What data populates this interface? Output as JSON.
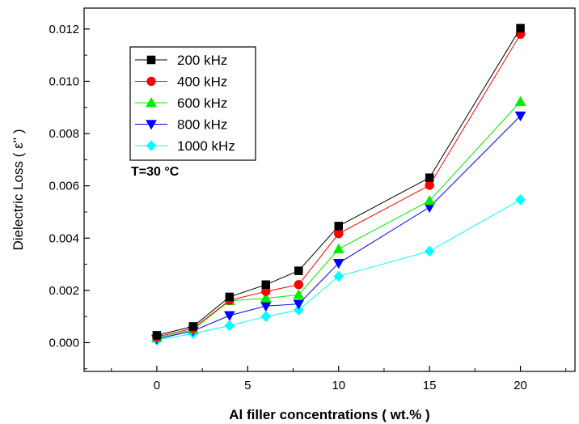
{
  "chart_data": {
    "type": "line",
    "x": [
      0,
      2,
      4,
      6,
      7.8,
      10,
      15,
      20
    ],
    "series": [
      {
        "name": "200 kHz",
        "color": "#000000",
        "marker": "square",
        "values": [
          0.00028,
          0.00062,
          0.00175,
          0.00222,
          0.00275,
          0.00446,
          0.00631,
          0.01203
        ]
      },
      {
        "name": "400 kHz",
        "color": "#ff0000",
        "marker": "circle",
        "values": [
          0.00022,
          0.00055,
          0.00162,
          0.00196,
          0.00222,
          0.00417,
          0.00602,
          0.0118
        ]
      },
      {
        "name": "600 kHz",
        "color": "#00ee00",
        "marker": "triangle-up",
        "values": [
          0.00018,
          0.0005,
          0.0016,
          0.0017,
          0.00183,
          0.00358,
          0.00543,
          0.00922
        ]
      },
      {
        "name": "800 kHz",
        "color": "#0000ff",
        "marker": "triangle-down",
        "values": [
          0.00014,
          0.00045,
          0.00104,
          0.0014,
          0.00148,
          0.00304,
          0.00518,
          0.00868
        ]
      },
      {
        "name": "1000 kHz",
        "color": "#00ffff",
        "marker": "diamond",
        "values": [
          0.0001,
          0.00035,
          0.00065,
          0.001,
          0.00125,
          0.00254,
          0.0035,
          0.00547
        ]
      }
    ],
    "xlabel": "Al filler concentrations ( wt.% )",
    "ylabel": "Dielectric Loss ( ε'' )",
    "xlim": [
      -4,
      23
    ],
    "ylim": [
      -0.0011,
      0.0128
    ],
    "xticks": [
      0,
      5,
      10,
      15,
      20
    ],
    "xtick_labels": [
      "0",
      "5",
      "10",
      "15",
      "20"
    ],
    "yticks": [
      0,
      0.002,
      0.004,
      0.006,
      0.008,
      0.01,
      0.012
    ],
    "ytick_labels": [
      "0.000",
      "0.002",
      "0.004",
      "0.006",
      "0.008",
      "0.010",
      "0.012"
    ],
    "annotation": "T=30 °C",
    "legend_position": "top-left",
    "grid": false
  }
}
